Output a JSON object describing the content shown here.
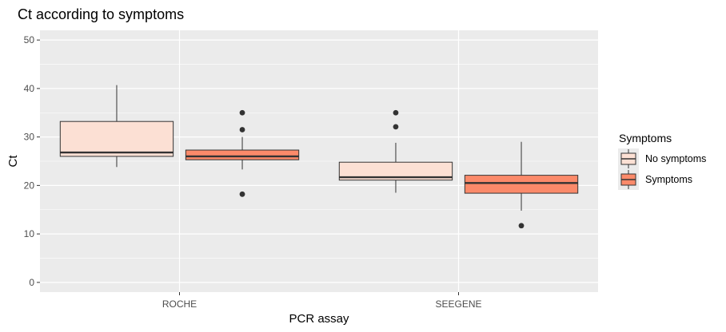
{
  "chart_data": {
    "type": "boxplot",
    "title": "Ct according to symptoms",
    "xlabel": "PCR assay",
    "ylabel": "Ct",
    "categories": [
      "ROCHE",
      "SEEGENE"
    ],
    "ylim": [
      -2,
      52
    ],
    "yticks": [
      0,
      10,
      20,
      30,
      40,
      50
    ],
    "grid": true,
    "legend": {
      "title": "Symptoms",
      "position": "right",
      "entries": [
        "No symptoms",
        "Symptoms"
      ]
    },
    "series": [
      {
        "name": "No symptoms",
        "color": "#FCE0D4",
        "boxes": [
          {
            "category": "ROCHE",
            "q1": 26.0,
            "median": 26.8,
            "q3": 33.2,
            "whisker_low": 23.8,
            "whisker_high": 40.7,
            "outliers": []
          },
          {
            "category": "SEEGENE",
            "q1": 21.1,
            "median": 21.7,
            "q3": 24.8,
            "whisker_low": 18.5,
            "whisker_high": 28.8,
            "outliers": [
              32.1,
              35.0
            ]
          }
        ]
      },
      {
        "name": "Symptoms",
        "color": "#FB8A6A",
        "boxes": [
          {
            "category": "ROCHE",
            "q1": 25.3,
            "median": 26.0,
            "q3": 27.3,
            "whisker_low": 23.3,
            "whisker_high": 30.0,
            "outliers": [
              18.2,
              31.5,
              35.0
            ]
          },
          {
            "category": "SEEGENE",
            "q1": 18.4,
            "median": 20.5,
            "q3": 22.1,
            "whisker_low": 14.8,
            "whisker_high": 29.0,
            "outliers": [
              11.7
            ]
          }
        ]
      }
    ]
  }
}
